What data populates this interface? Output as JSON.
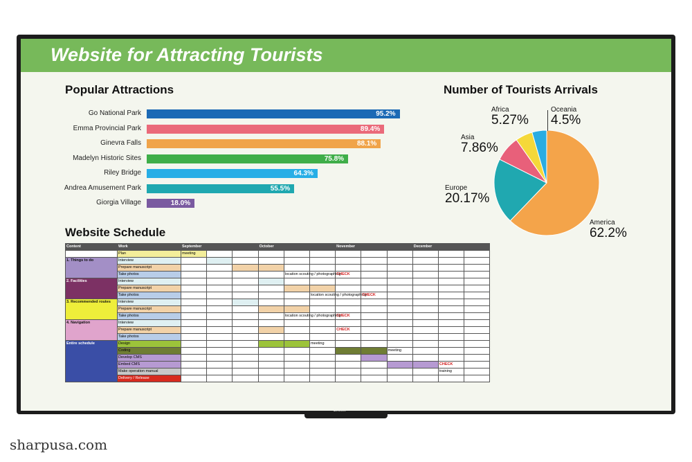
{
  "banner": {
    "title": "Website for Attracting Tourists",
    "color": "#77b95a"
  },
  "attractions": {
    "title": "Popular Attractions",
    "items": [
      {
        "name": "Go National Park",
        "value": 95.2,
        "label": "95.2%",
        "color": "#1c6ab5"
      },
      {
        "name": "Emma Provincial Park",
        "value": 89.4,
        "label": "89.4%",
        "color": "#ea6a7a"
      },
      {
        "name": "Ginevra Falls",
        "value": 88.1,
        "label": "88.1%",
        "color": "#f0a44a"
      },
      {
        "name": "Madelyn Historic Sites",
        "value": 75.8,
        "label": "75.8%",
        "color": "#3fae49"
      },
      {
        "name": "Riley Bridge",
        "value": 64.3,
        "label": "64.3%",
        "color": "#27aee6"
      },
      {
        "name": "Andrea Amusement Park",
        "value": 55.5,
        "label": "55.5%",
        "color": "#1fa8b0"
      },
      {
        "name": "Giorgia Village",
        "value": 18.0,
        "label": "18.0%",
        "color": "#7a5aa0"
      }
    ]
  },
  "arrivals": {
    "title": "Number of Tourists Arrivals",
    "slices": [
      {
        "name": "America",
        "value": 62.2,
        "label": "62.2%",
        "color": "#f4a44a"
      },
      {
        "name": "Europe",
        "value": 20.17,
        "label": "20.17%",
        "color": "#20a8b0"
      },
      {
        "name": "Asia",
        "value": 7.86,
        "label": "7.86%",
        "color": "#e8607a"
      },
      {
        "name": "Africa",
        "value": 5.27,
        "label": "5.27%",
        "color": "#f5d83a"
      },
      {
        "name": "Oceania",
        "value": 4.5,
        "label": "4.5%",
        "color": "#2aace2"
      }
    ]
  },
  "schedule": {
    "title": "Website Schedule",
    "headers": [
      "Content",
      "Work",
      "September",
      "October",
      "November",
      "December"
    ],
    "rows": [
      {
        "group": "",
        "work": "Plan",
        "workColor": "#f3ee9a",
        "cells": {
          "0": {
            "text": "meeting",
            "color": "#f3ee9a"
          }
        }
      },
      {
        "group": "1. Things to do",
        "groupColor": "#a38fc6",
        "work": "Interview",
        "workColor": "#dff0f2",
        "cells": {
          "1": {
            "text": "",
            "color": "#dff0f2"
          }
        }
      },
      {
        "group": "",
        "work": "Prepare manuscript",
        "workColor": "#f2d2a8",
        "cells": {
          "2": {
            "text": "",
            "color": "#f2d2a8"
          },
          "3": {
            "text": "",
            "color": "#f2d2a8"
          }
        }
      },
      {
        "group": "",
        "work": "Take photos",
        "workColor": "#b8cde8",
        "cells": {
          "4": {
            "text": "location scouting / photographing",
            "color": ""
          },
          "6": {
            "text": "CHECK",
            "color": "",
            "check": true
          }
        }
      },
      {
        "group": "2. Facilities",
        "groupColor": "#7c3164",
        "work": "Interview",
        "workColor": "#dff0f2",
        "cells": {
          "3": {
            "text": "",
            "color": "#dff0f2"
          }
        }
      },
      {
        "group": "",
        "work": "Prepare manuscript",
        "workColor": "#f2d2a8",
        "cells": {
          "4": {
            "text": "",
            "color": "#f2d2a8"
          },
          "5": {
            "text": "",
            "color": "#f2d2a8"
          }
        }
      },
      {
        "group": "",
        "work": "Take photos",
        "workColor": "#b8cde8",
        "cells": {
          "5": {
            "text": "location scouting / photographing",
            "color": ""
          },
          "7": {
            "text": "CHECK",
            "color": "",
            "check": true
          }
        }
      },
      {
        "group": "3. Recommended routes",
        "groupColor": "#eeee3a",
        "work": "Interview",
        "workColor": "#dff0f2",
        "cells": {
          "2": {
            "text": "",
            "color": "#dff0f2"
          }
        }
      },
      {
        "group": "",
        "work": "Prepare manuscript",
        "workColor": "#f2d2a8",
        "cells": {
          "3": {
            "text": "",
            "color": "#f2d2a8"
          },
          "4": {
            "text": "",
            "color": "#f2d2a8"
          }
        }
      },
      {
        "group": "",
        "work": "Take photos",
        "workColor": "#b8cde8",
        "cells": {
          "4": {
            "text": "location scouting / photographing",
            "color": ""
          },
          "6": {
            "text": "CHECK",
            "color": "",
            "check": true
          }
        }
      },
      {
        "group": "4. Navigation",
        "groupColor": "#e0a4cc",
        "work": "Interview",
        "workColor": "#dff0f2",
        "cells": {}
      },
      {
        "group": "",
        "work": "Prepare manuscript",
        "workColor": "#f2d2a8",
        "cells": {
          "3": {
            "text": "",
            "color": "#f2d2a8"
          },
          "6": {
            "text": "CHECK",
            "color": "",
            "check": true
          }
        }
      },
      {
        "group": "",
        "work": "Take photos",
        "workColor": "#b8cde8",
        "cells": {}
      },
      {
        "group": "Entire schedule",
        "groupColor": "#3a4ea6",
        "work": "Design",
        "workColor": "#9cc33a",
        "cells": {
          "3": {
            "text": "",
            "color": "#9cc33a"
          },
          "4": {
            "text": "",
            "color": "#9cc33a"
          },
          "5": {
            "text": "meeting",
            "color": ""
          }
        }
      },
      {
        "group": "",
        "work": "Coding",
        "workColor": "#6f7d34",
        "cells": {
          "6": {
            "text": "",
            "color": "#6f7d34"
          },
          "7": {
            "text": "",
            "color": "#6f7d34"
          },
          "8": {
            "text": "meeting",
            "color": ""
          }
        }
      },
      {
        "group": "",
        "work": "Develop CMS",
        "workColor": "#b69ad2",
        "cells": {
          "7": {
            "text": "",
            "color": "#b69ad2"
          }
        }
      },
      {
        "group": "",
        "work": "Embed CMS",
        "workColor": "#b69ad2",
        "cells": {
          "8": {
            "text": "",
            "color": "#b69ad2"
          },
          "9": {
            "text": "",
            "color": "#b69ad2"
          },
          "10": {
            "text": "CHECK",
            "color": "",
            "check": true
          }
        }
      },
      {
        "group": "",
        "work": "Make operation manual",
        "workColor": "#c8c8c8",
        "cells": {
          "10": {
            "text": "training",
            "color": ""
          }
        }
      },
      {
        "group": "",
        "work": "Delivery / Release",
        "workColor": "#d72a1e",
        "cells": {
          "12": {
            "text": "",
            "color": "#d72a1e"
          }
        }
      }
    ]
  },
  "brand": "SHARP",
  "watermark": "sharpusa.com"
}
